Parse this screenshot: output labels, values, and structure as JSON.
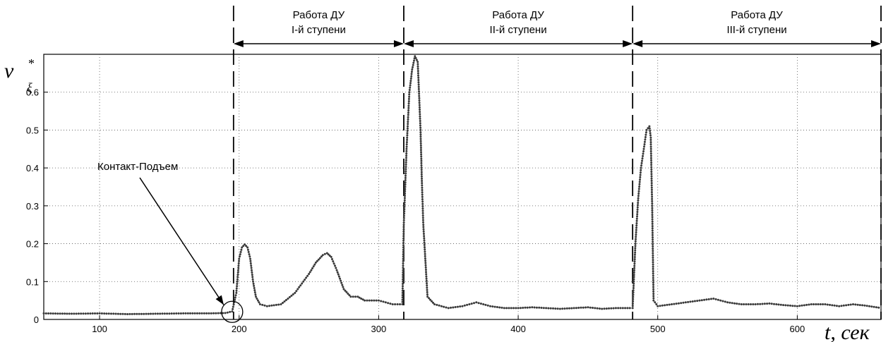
{
  "chart_data": {
    "type": "line",
    "xlim": [
      60,
      660
    ],
    "ylim": [
      0,
      0.7
    ],
    "x_ticks": [
      100,
      200,
      300,
      400,
      500,
      600
    ],
    "y_ticks": [
      0,
      0.1,
      0.2,
      0.3,
      0.4,
      0.5,
      0.6
    ],
    "grid": true,
    "xlabel": "t, сек",
    "ylabel": {
      "main": "ν",
      "sub": "ξ",
      "sup": "*"
    },
    "phase_boundaries": [
      196,
      318,
      482,
      660
    ],
    "phases": [
      {
        "line1": "Работа ДУ",
        "line2": "I-й ступени"
      },
      {
        "line1": "Работа ДУ",
        "line2": "II-й ступени"
      },
      {
        "line1": "Работа ДУ",
        "line2": "III-й ступени"
      }
    ],
    "annotation": {
      "text": "Контакт-Подъем",
      "x": 195,
      "y": 0.02
    },
    "series": [
      {
        "x": [
          60,
          80,
          100,
          120,
          140,
          160,
          180,
          190,
          195,
          198,
          200,
          202,
          204,
          206,
          208,
          210,
          212,
          215,
          220,
          230,
          240,
          250,
          255,
          260,
          263,
          266,
          270,
          275,
          280,
          285,
          290,
          300,
          310,
          317,
          318,
          320,
          322,
          324,
          326,
          328,
          330,
          331,
          332,
          335,
          340,
          350,
          360,
          370,
          380,
          390,
          400,
          410,
          420,
          430,
          440,
          450,
          460,
          470,
          480,
          482,
          484,
          486,
          488,
          490,
          492,
          494,
          495,
          496,
          497,
          500,
          510,
          520,
          530,
          540,
          550,
          560,
          570,
          580,
          590,
          600,
          610,
          620,
          630,
          640,
          650,
          660
        ],
        "values": [
          0.016,
          0.015,
          0.016,
          0.014,
          0.015,
          0.016,
          0.016,
          0.017,
          0.021,
          0.07,
          0.16,
          0.19,
          0.198,
          0.19,
          0.16,
          0.1,
          0.06,
          0.04,
          0.035,
          0.04,
          0.07,
          0.12,
          0.15,
          0.17,
          0.175,
          0.165,
          0.13,
          0.08,
          0.06,
          0.06,
          0.05,
          0.05,
          0.04,
          0.04,
          0.25,
          0.45,
          0.6,
          0.66,
          0.695,
          0.68,
          0.5,
          0.36,
          0.25,
          0.06,
          0.04,
          0.03,
          0.035,
          0.045,
          0.035,
          0.03,
          0.03,
          0.032,
          0.03,
          0.028,
          0.03,
          0.032,
          0.028,
          0.03,
          0.03,
          0.03,
          0.2,
          0.32,
          0.4,
          0.45,
          0.5,
          0.51,
          0.48,
          0.3,
          0.05,
          0.035,
          0.04,
          0.045,
          0.05,
          0.055,
          0.045,
          0.04,
          0.04,
          0.042,
          0.038,
          0.035,
          0.04,
          0.04,
          0.035,
          0.04,
          0.036,
          0.03
        ]
      }
    ]
  }
}
